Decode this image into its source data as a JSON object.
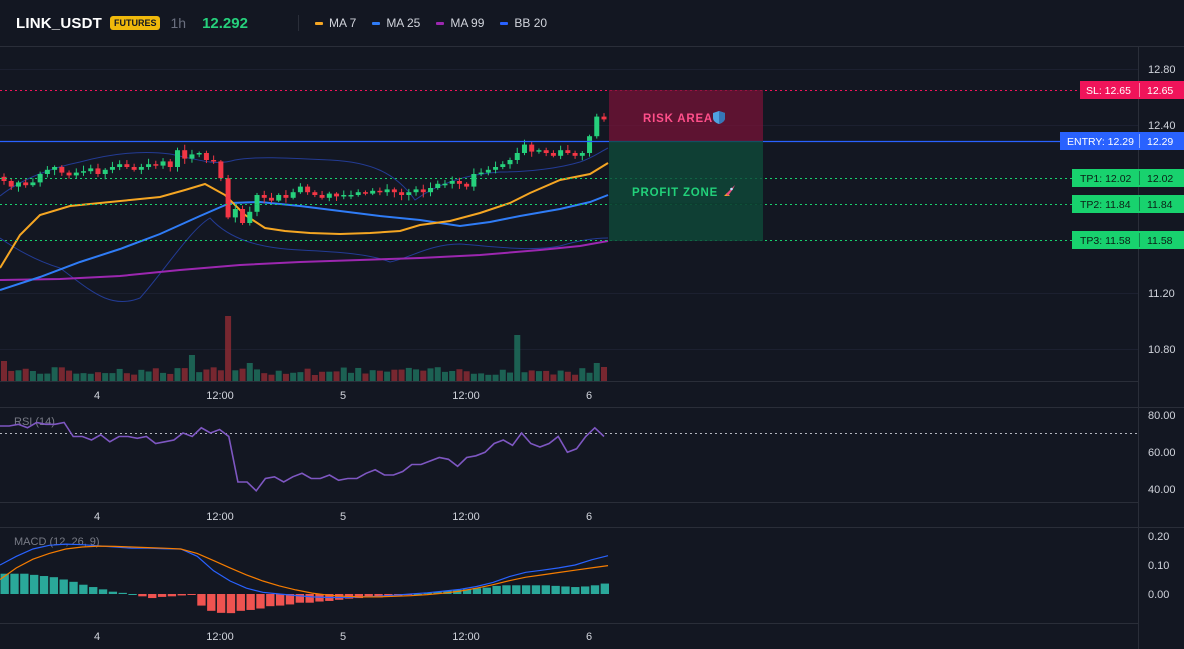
{
  "header": {
    "symbol": "LINK_USDT",
    "badge": "FUTURES",
    "timeframe": "1h",
    "price": "12.292",
    "indicators": [
      {
        "label": "MA 7",
        "color": "#f5a623"
      },
      {
        "label": "MA 25",
        "color": "#2f7cf6"
      },
      {
        "label": "MA 99",
        "color": "#9c27b0"
      },
      {
        "label": "BB 20",
        "color": "#2962ff"
      }
    ]
  },
  "price_axis": [
    "12.80",
    "12.40",
    "11.20",
    "10.80"
  ],
  "rsi_axis": [
    "80.00",
    "60.00",
    "40.00"
  ],
  "macd_axis": [
    "0.20",
    "0.10",
    "0.00"
  ],
  "time_axis": [
    "4",
    "12:00",
    "5",
    "12:00",
    "6"
  ],
  "levels": {
    "sl": {
      "label": "SL: 12.65",
      "value": "12.65"
    },
    "entry": {
      "label": "ENTRY: 12.29",
      "value": "12.29"
    },
    "tp1": {
      "label": "TP1: 12.02",
      "value": "12.02"
    },
    "tp2": {
      "label": "TP2: 11.84",
      "value": "11.84"
    },
    "tp3": {
      "label": "TP3: 11.58",
      "value": "11.58"
    }
  },
  "zones": {
    "risk": "RISK AREA",
    "profit": "PROFIT ZONE"
  },
  "rsi_label": "RSI (14)",
  "macd_label": "MACD (12, 26, 9)",
  "colors": {
    "up": "#26d07c",
    "down": "#f23645",
    "sl": "#f0145a",
    "entry": "#2962ff",
    "tp": "#18d26e",
    "rsi": "#7e57c2"
  },
  "chart_data": {
    "type": "candlestick",
    "close_prices": [
      12.0,
      11.96,
      11.99,
      11.97,
      11.99,
      12.05,
      12.08,
      12.1,
      12.06,
      12.04,
      12.06,
      12.07,
      12.09,
      12.05,
      12.08,
      12.1,
      12.12,
      12.1,
      12.08,
      12.1,
      12.12,
      12.11,
      12.14,
      12.1,
      12.22,
      12.16,
      12.19,
      12.2,
      12.15,
      12.14,
      12.02,
      11.74,
      11.8,
      11.7,
      11.78,
      11.9,
      11.88,
      11.86,
      11.9,
      11.88,
      11.92,
      11.96,
      11.92,
      11.9,
      11.88,
      11.91,
      11.89,
      11.9,
      11.9,
      11.92,
      11.91,
      11.93,
      11.92,
      11.94,
      11.92,
      11.9,
      11.92,
      11.94,
      11.92,
      11.95,
      11.98,
      11.98,
      12.0,
      11.98,
      11.96,
      12.05,
      12.06,
      12.08,
      12.1,
      12.12,
      12.15,
      12.2,
      12.26,
      12.21,
      12.22,
      12.2,
      12.18,
      12.22,
      12.2,
      12.18,
      12.2,
      12.32,
      12.46,
      12.44
    ],
    "rsi": [
      76,
      76,
      77,
      75,
      78,
      77,
      77,
      78,
      70,
      70,
      68,
      71,
      67,
      70,
      70,
      69,
      70,
      66,
      67,
      68,
      72,
      70,
      75,
      72,
      74,
      70,
      44,
      44,
      39,
      46,
      47,
      44,
      47,
      49,
      46,
      46,
      48,
      45,
      46,
      46,
      49,
      51,
      48,
      48,
      50,
      54,
      54,
      56,
      58,
      57,
      53,
      58,
      59,
      61,
      66,
      68,
      65,
      72,
      66,
      64,
      66,
      70,
      61,
      63,
      70,
      75,
      70
    ],
    "macd_hist": [
      0.07,
      0.07,
      0.07,
      0.066,
      0.062,
      0.058,
      0.05,
      0.042,
      0.032,
      0.024,
      0.016,
      0.008,
      0.004,
      0.0,
      -0.008,
      -0.014,
      -0.01,
      -0.008,
      -0.005,
      -0.002,
      -0.04,
      -0.058,
      -0.065,
      -0.066,
      -0.058,
      -0.055,
      -0.05,
      -0.042,
      -0.04,
      -0.036,
      -0.03,
      -0.03,
      -0.026,
      -0.024,
      -0.02,
      -0.016,
      -0.014,
      -0.012,
      -0.012,
      -0.01,
      -0.006,
      -0.004,
      0.0,
      0.004,
      0.008,
      0.012,
      0.014,
      0.016,
      0.02,
      0.022,
      0.028,
      0.03,
      0.03,
      0.03,
      0.03,
      0.03,
      0.028,
      0.026,
      0.024,
      0.026,
      0.03,
      0.036
    ],
    "macd_line": [
      0.1,
      0.13,
      0.155,
      0.168,
      0.172,
      0.17,
      0.166,
      0.162,
      0.158,
      0.158,
      0.156,
      0.155,
      0.13,
      0.08,
      0.045,
      0.02,
      0.006,
      0.0,
      -0.005,
      -0.01,
      -0.012,
      -0.012,
      -0.01,
      -0.008,
      -0.004,
      0.0,
      0.004,
      0.01,
      0.016,
      0.026,
      0.04,
      0.06,
      0.075,
      0.082,
      0.09,
      0.1,
      0.118,
      0.132
    ],
    "signal_line": [
      0.05,
      0.09,
      0.12,
      0.14,
      0.155,
      0.162,
      0.165,
      0.164,
      0.162,
      0.16,
      0.158,
      0.155,
      0.14,
      0.115,
      0.09,
      0.066,
      0.045,
      0.028,
      0.014,
      0.003,
      -0.004,
      -0.008,
      -0.01,
      -0.01,
      -0.008,
      -0.006,
      -0.002,
      0.003,
      0.01,
      0.02,
      0.032,
      0.046,
      0.058,
      0.066,
      0.074,
      0.082,
      0.09,
      0.098
    ]
  }
}
